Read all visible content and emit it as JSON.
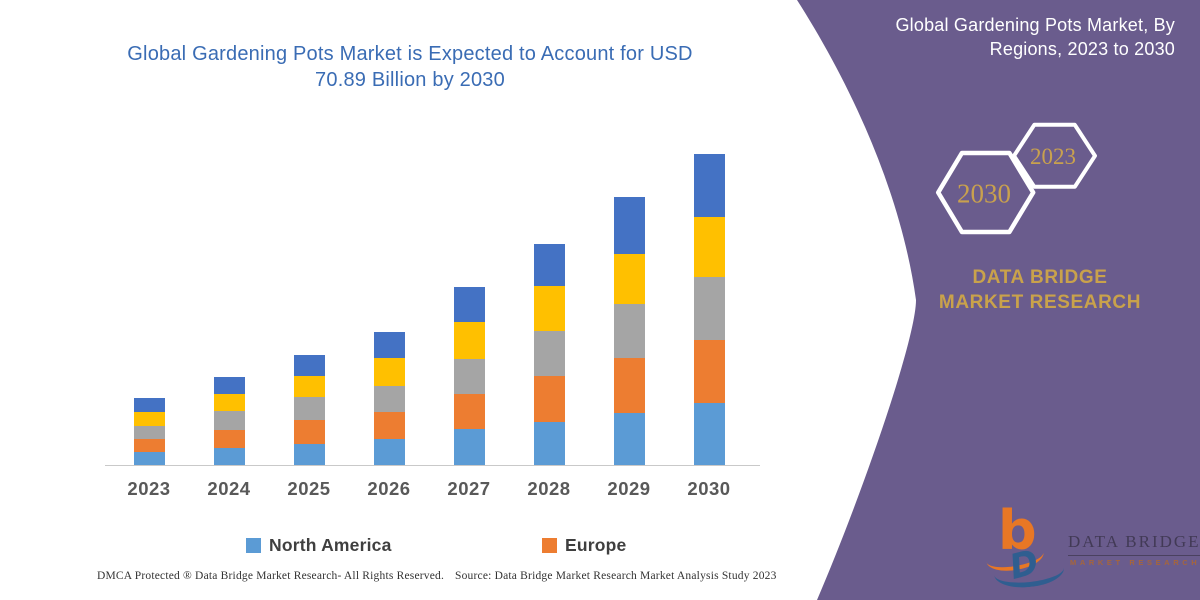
{
  "chart": {
    "title": "Global Gardening Pots Market is Expected to Account for USD 70.89 Billion by 2030",
    "footer_left": "DMCA Protected ® Data Bridge Market Research-  All Rights Reserved.",
    "footer_right": "Source: Data Bridge Market Research  Market Analysis Study 2023"
  },
  "chart_data": {
    "type": "bar",
    "stacked": true,
    "title": "Global Gardening Pots Market is Expected to Account for USD 70.89 Billion by 2030",
    "xlabel": "",
    "ylabel": "",
    "unit": "USD Billion (estimated from bar heights; 2030 total = 70.89)",
    "categories": [
      "2023",
      "2024",
      "2025",
      "2026",
      "2027",
      "2028",
      "2029",
      "2030"
    ],
    "series": [
      {
        "name": "North America",
        "color": "#5B9BD5",
        "in_legend": true,
        "values": [
          3.0,
          3.8,
          4.9,
          5.9,
          8.1,
          9.9,
          11.9,
          14.1
        ]
      },
      {
        "name": "Europe",
        "color": "#ED7D31",
        "in_legend": true,
        "values": [
          3.0,
          4.2,
          5.3,
          6.1,
          8.0,
          10.3,
          12.4,
          14.4
        ]
      },
      {
        "name": "",
        "color": "#A5A5A5",
        "in_legend": false,
        "values": [
          3.0,
          4.2,
          5.3,
          6.1,
          8.1,
          10.4,
          12.3,
          14.4
        ]
      },
      {
        "name": "",
        "color": "#FFC000",
        "in_legend": false,
        "values": [
          3.0,
          4.0,
          4.8,
          6.2,
          8.4,
          10.3,
          11.6,
          13.7
        ]
      },
      {
        "name": "",
        "color": "#4472C4",
        "in_legend": false,
        "values": [
          3.3,
          3.9,
          4.9,
          6.1,
          8.1,
          9.6,
          12.8,
          14.3
        ]
      }
    ],
    "totals_estimated": [
      15.3,
      20.1,
      25.2,
      30.4,
      40.7,
      50.5,
      61.0,
      70.89
    ],
    "ylim": [
      0,
      71
    ],
    "grid": false,
    "y_axis_shown": false,
    "legend_position": "bottom",
    "legend": [
      "North America",
      "Europe"
    ]
  },
  "panel": {
    "heading": "Global Gardening Pots Market, By Regions, 2023 to 2030",
    "hexagons": [
      {
        "label": "2030"
      },
      {
        "label": "2023"
      }
    ],
    "brand_text": "DATA BRIDGE MARKET RESEARCH",
    "logo": {
      "monogram_b": "b",
      "monogram_d": "D",
      "title": "DATA BRIDGE",
      "subtitle": "MARKET RESEARCH"
    },
    "colors": {
      "panel_bg": "#6A5C8D",
      "gold": "#C9A24B",
      "hex_stroke": "#FFFFFF"
    }
  },
  "colors": {
    "title_text": "#3A6CB4",
    "axis_line": "#C9C9C9",
    "tick_text": "#595959",
    "legend_text": "#3F3F3F"
  }
}
